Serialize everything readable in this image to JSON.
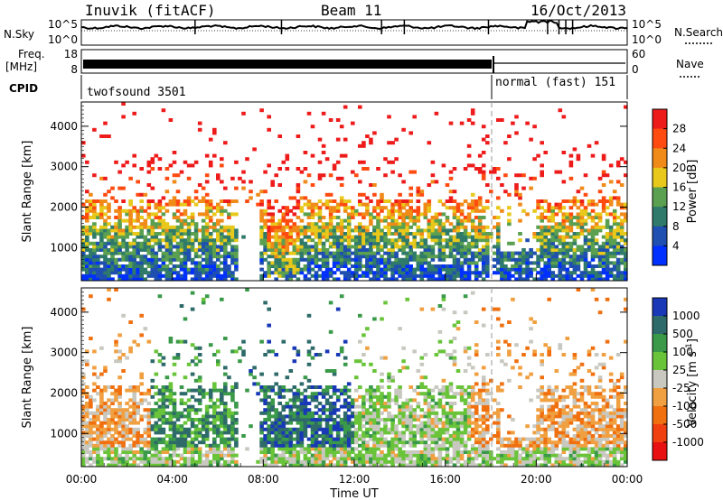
{
  "header": {
    "station": "Inuvik (fitACF)",
    "beam": "Beam 11",
    "date": "16/Oct/2013"
  },
  "panels": {
    "nsky": {
      "left_label": "N.Sky",
      "right_label": "N.Search",
      "left_ticks": [
        "10^5",
        "10^0"
      ],
      "right_ticks": [
        "10^5",
        "10^0"
      ]
    },
    "freq": {
      "left_label_1": "Freq.",
      "left_label_2": "[MHz]",
      "right_label": "Nave",
      "left_ticks": [
        "18",
        "8"
      ],
      "right_ticks": [
        "60",
        "0"
      ]
    },
    "cpid": {
      "label": "CPID",
      "segments": [
        "twofsound 3501",
        "normal (fast) 151"
      ],
      "change_time": "18:00"
    }
  },
  "chart_data": [
    {
      "type": "heatmap",
      "title": "",
      "ylabel": "Slant Range [km]",
      "ylim": [
        180,
        4600
      ],
      "y_ticks": [
        "1000",
        "2000",
        "3000",
        "4000"
      ],
      "colorbar_label": "Power [dB]",
      "colorbar_ticks": [
        "28",
        "24",
        "20",
        "16",
        "12",
        "8",
        "4"
      ],
      "colors": [
        "#0030ff",
        "#1f4fb0",
        "#2f7a6a",
        "#5aa050",
        "#e8c81a",
        "#f08a18",
        "#ff4a10",
        "#ee1b1b"
      ],
      "range": [
        0,
        32
      ]
    },
    {
      "type": "heatmap",
      "title": "",
      "ylabel": "Slant Range [km]",
      "ylim": [
        180,
        4600
      ],
      "y_ticks": [
        "1000",
        "2000",
        "3000",
        "4000"
      ],
      "colorbar_label": "Velocity [m s^-1]",
      "colorbar_ticks": [
        "1000",
        "500",
        "100",
        "25",
        "-25",
        "-100",
        "-500",
        "-1000"
      ],
      "colors": [
        "#1838b8",
        "#2f6a6a",
        "#3a9a4a",
        "#6ac43a",
        "#c8c8c0",
        "#f0a040",
        "#f07010",
        "#f04010",
        "#e81010"
      ]
    }
  ],
  "xaxis": {
    "label": "Time UT",
    "ticks": [
      "00:00",
      "04:00",
      "08:00",
      "12:00",
      "16:00",
      "20:00",
      "00:00"
    ]
  }
}
